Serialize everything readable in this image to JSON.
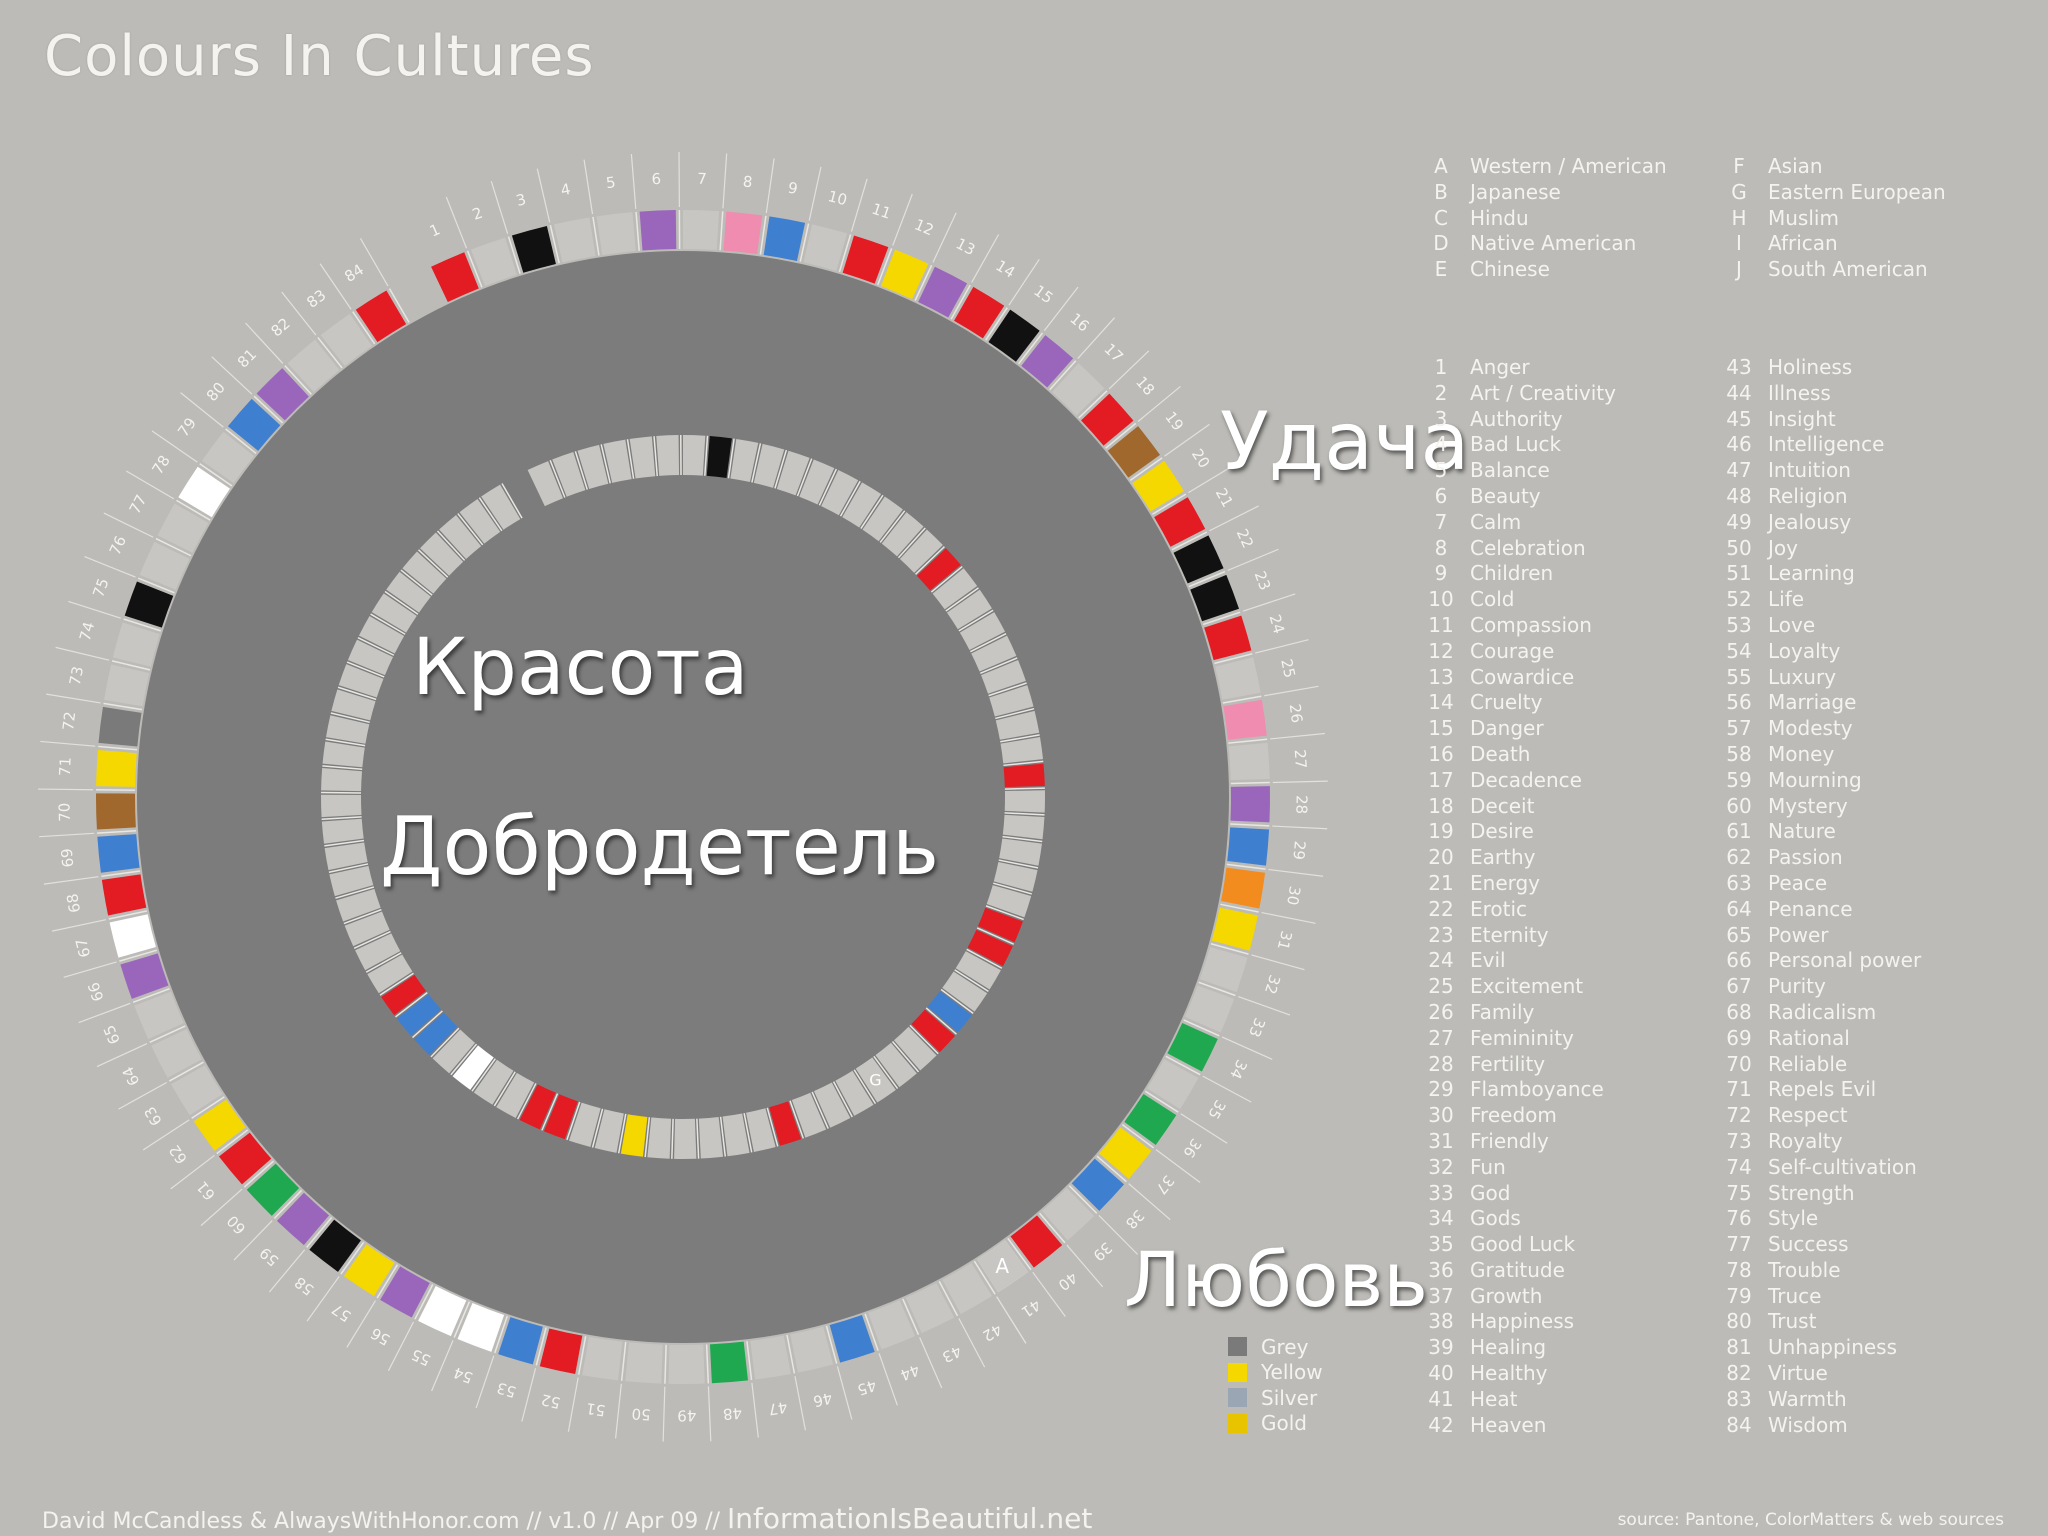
{
  "title": "Colours In Cultures",
  "overlay_words": {
    "udacha": "Удача",
    "krasota": "Красота",
    "dobrodetel": "Добродетель",
    "lubov": "Любовь"
  },
  "cultures": [
    {
      "key": "A",
      "name": "Western / American"
    },
    {
      "key": "B",
      "name": "Japanese"
    },
    {
      "key": "C",
      "name": "Hindu"
    },
    {
      "key": "D",
      "name": "Native American"
    },
    {
      "key": "E",
      "name": "Chinese"
    },
    {
      "key": "F",
      "name": "Asian"
    },
    {
      "key": "G",
      "name": "Eastern European"
    },
    {
      "key": "H",
      "name": "Muslim"
    },
    {
      "key": "I",
      "name": "African"
    },
    {
      "key": "J",
      "name": "South American"
    }
  ],
  "meanings": [
    "Anger",
    "Art / Creativity",
    "Authority",
    "Bad Luck",
    "Balance",
    "Beauty",
    "Calm",
    "Celebration",
    "Children",
    "Cold",
    "Compassion",
    "Courage",
    "Cowardice",
    "Cruelty",
    "Danger",
    "Death",
    "Decadence",
    "Deceit",
    "Desire",
    "Earthy",
    "Energy",
    "Erotic",
    "Eternity",
    "Evil",
    "Excitement",
    "Family",
    "Femininity",
    "Fertility",
    "Flamboyance",
    "Freedom",
    "Friendly",
    "Fun",
    "God",
    "Gods",
    "Good Luck",
    "Gratitude",
    "Growth",
    "Happiness",
    "Healing",
    "Healthy",
    "Heat",
    "Heaven",
    "Holiness",
    "Illness",
    "Insight",
    "Intelligence",
    "Intuition",
    "Religion",
    "Jealousy",
    "Joy",
    "Learning",
    "Life",
    "Love",
    "Loyalty",
    "Luxury",
    "Marriage",
    "Modesty",
    "Money",
    "Mourning",
    "Mystery",
    "Nature",
    "Passion",
    "Peace",
    "Penance",
    "Power",
    "Personal power",
    "Purity",
    "Radicalism",
    "Rational",
    "Reliable",
    "Repels Evil",
    "Respect",
    "Royalty",
    "Self-cultivation",
    "Strength",
    "Style",
    "Success",
    "Trouble",
    "Truce",
    "Trust",
    "Unhappiness",
    "Virtue",
    "Warmth",
    "Wisdom"
  ],
  "color_legend": [
    {
      "name": "Grey",
      "color": "#7a7a7a"
    },
    {
      "name": "Yellow",
      "color": "#f5d800"
    },
    {
      "name": "Silver",
      "color": "#9aa6b4"
    },
    {
      "name": "Gold",
      "color": "#e8c300"
    }
  ],
  "colors": {
    "red": "#e31b23",
    "yellow": "#f5d800",
    "black": "#111111",
    "brown": "#a0682c",
    "pink": "#f08cb0",
    "purple": "#9966bb",
    "blue": "#3f7fd0",
    "orange": "#f28c1e",
    "green": "#1fa84f",
    "white": "#ffffff",
    "grey": "#7a7a7a",
    "center": "#7c7c7c",
    "slot": "#c7c6c2"
  },
  "chart_data": {
    "type": "radial-heatmap",
    "rings": [
      {
        "culture": "A",
        "cells": {
          "1": "red",
          "3": "black",
          "6": "purple",
          "8": "pink",
          "9": "blue",
          "11": "red",
          "12": "yellow",
          "13": "purple",
          "14": "red",
          "15": "black",
          "16": "purple",
          "18": "red",
          "19": "brown",
          "20": "yellow",
          "21": "red",
          "22": "black",
          "23": "black",
          "24": "red",
          "26": "pink",
          "28": "purple",
          "29": "blue",
          "30": "orange",
          "31": "yellow",
          "34": "green",
          "36": "green",
          "37": "yellow",
          "38": "blue",
          "40": "red",
          "41": "white",
          "45": "blue",
          "48": "green",
          "52": "red",
          "53": "blue",
          "54": "white",
          "55": "white",
          "56": "purple",
          "57": "yellow",
          "58": "black",
          "59": "purple",
          "60": "green",
          "61": "red",
          "62": "yellow",
          "66": "purple",
          "67": "white",
          "68": "red",
          "69": "blue",
          "70": "brown",
          "71": "yellow",
          "72": "grey",
          "75": "black",
          "78": "white",
          "80": "blue",
          "81": "purple",
          "84": "red"
        }
      },
      {
        "culture": "G",
        "cells": {
          "8": "black",
          "18": "red",
          "27": "red",
          "33": "red",
          "34": "red",
          "37": "blue",
          "38": "red",
          "45": "red",
          "51": "yellow",
          "54": "red",
          "55": "red",
          "58": "white",
          "60": "blue",
          "61": "blue",
          "62": "red"
        }
      }
    ]
  },
  "credit": {
    "authors": "David McCandless & AlwaysWithHonor.com",
    "version": "// v1.0 // Apr 09 //",
    "site": "InformationIsBeautiful.net"
  },
  "source": "source: Pantone, ColorMatters & web sources"
}
